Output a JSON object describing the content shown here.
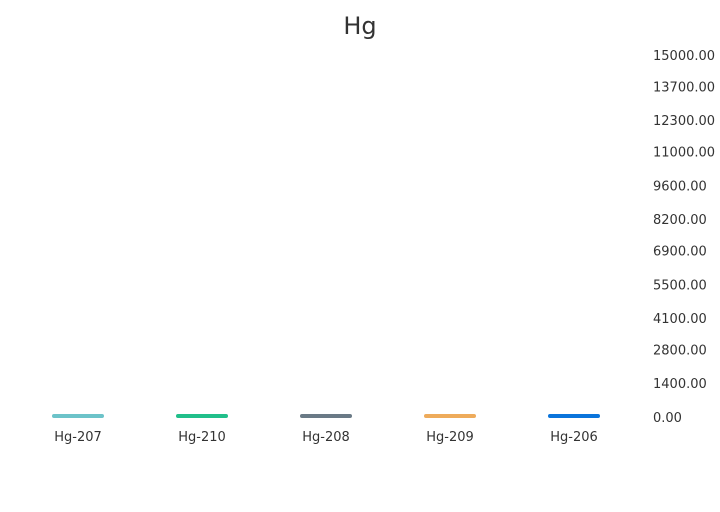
{
  "chart_data": {
    "type": "bar",
    "title": "Hg",
    "xlabel": "",
    "ylabel": "",
    "categories": [
      "Hg-207",
      "Hg-210",
      "Hg-208",
      "Hg-209",
      "Hg-206"
    ],
    "values": [
      30,
      80,
      40,
      70,
      60
    ],
    "colors": [
      "#6cc3c9",
      "#21bf8a",
      "#6a7a86",
      "#eeab5b",
      "#0a74db"
    ],
    "y_ticks": [
      "0.00",
      "1400.00",
      "2800.00",
      "4100.00",
      "5500.00",
      "6900.00",
      "8200.00",
      "9600.00",
      "11000.00",
      "12300.00",
      "13700.00",
      "15000.00"
    ],
    "ylim": [
      0,
      15000
    ],
    "y_axis_position": "right",
    "grid": false,
    "legend": "none"
  }
}
